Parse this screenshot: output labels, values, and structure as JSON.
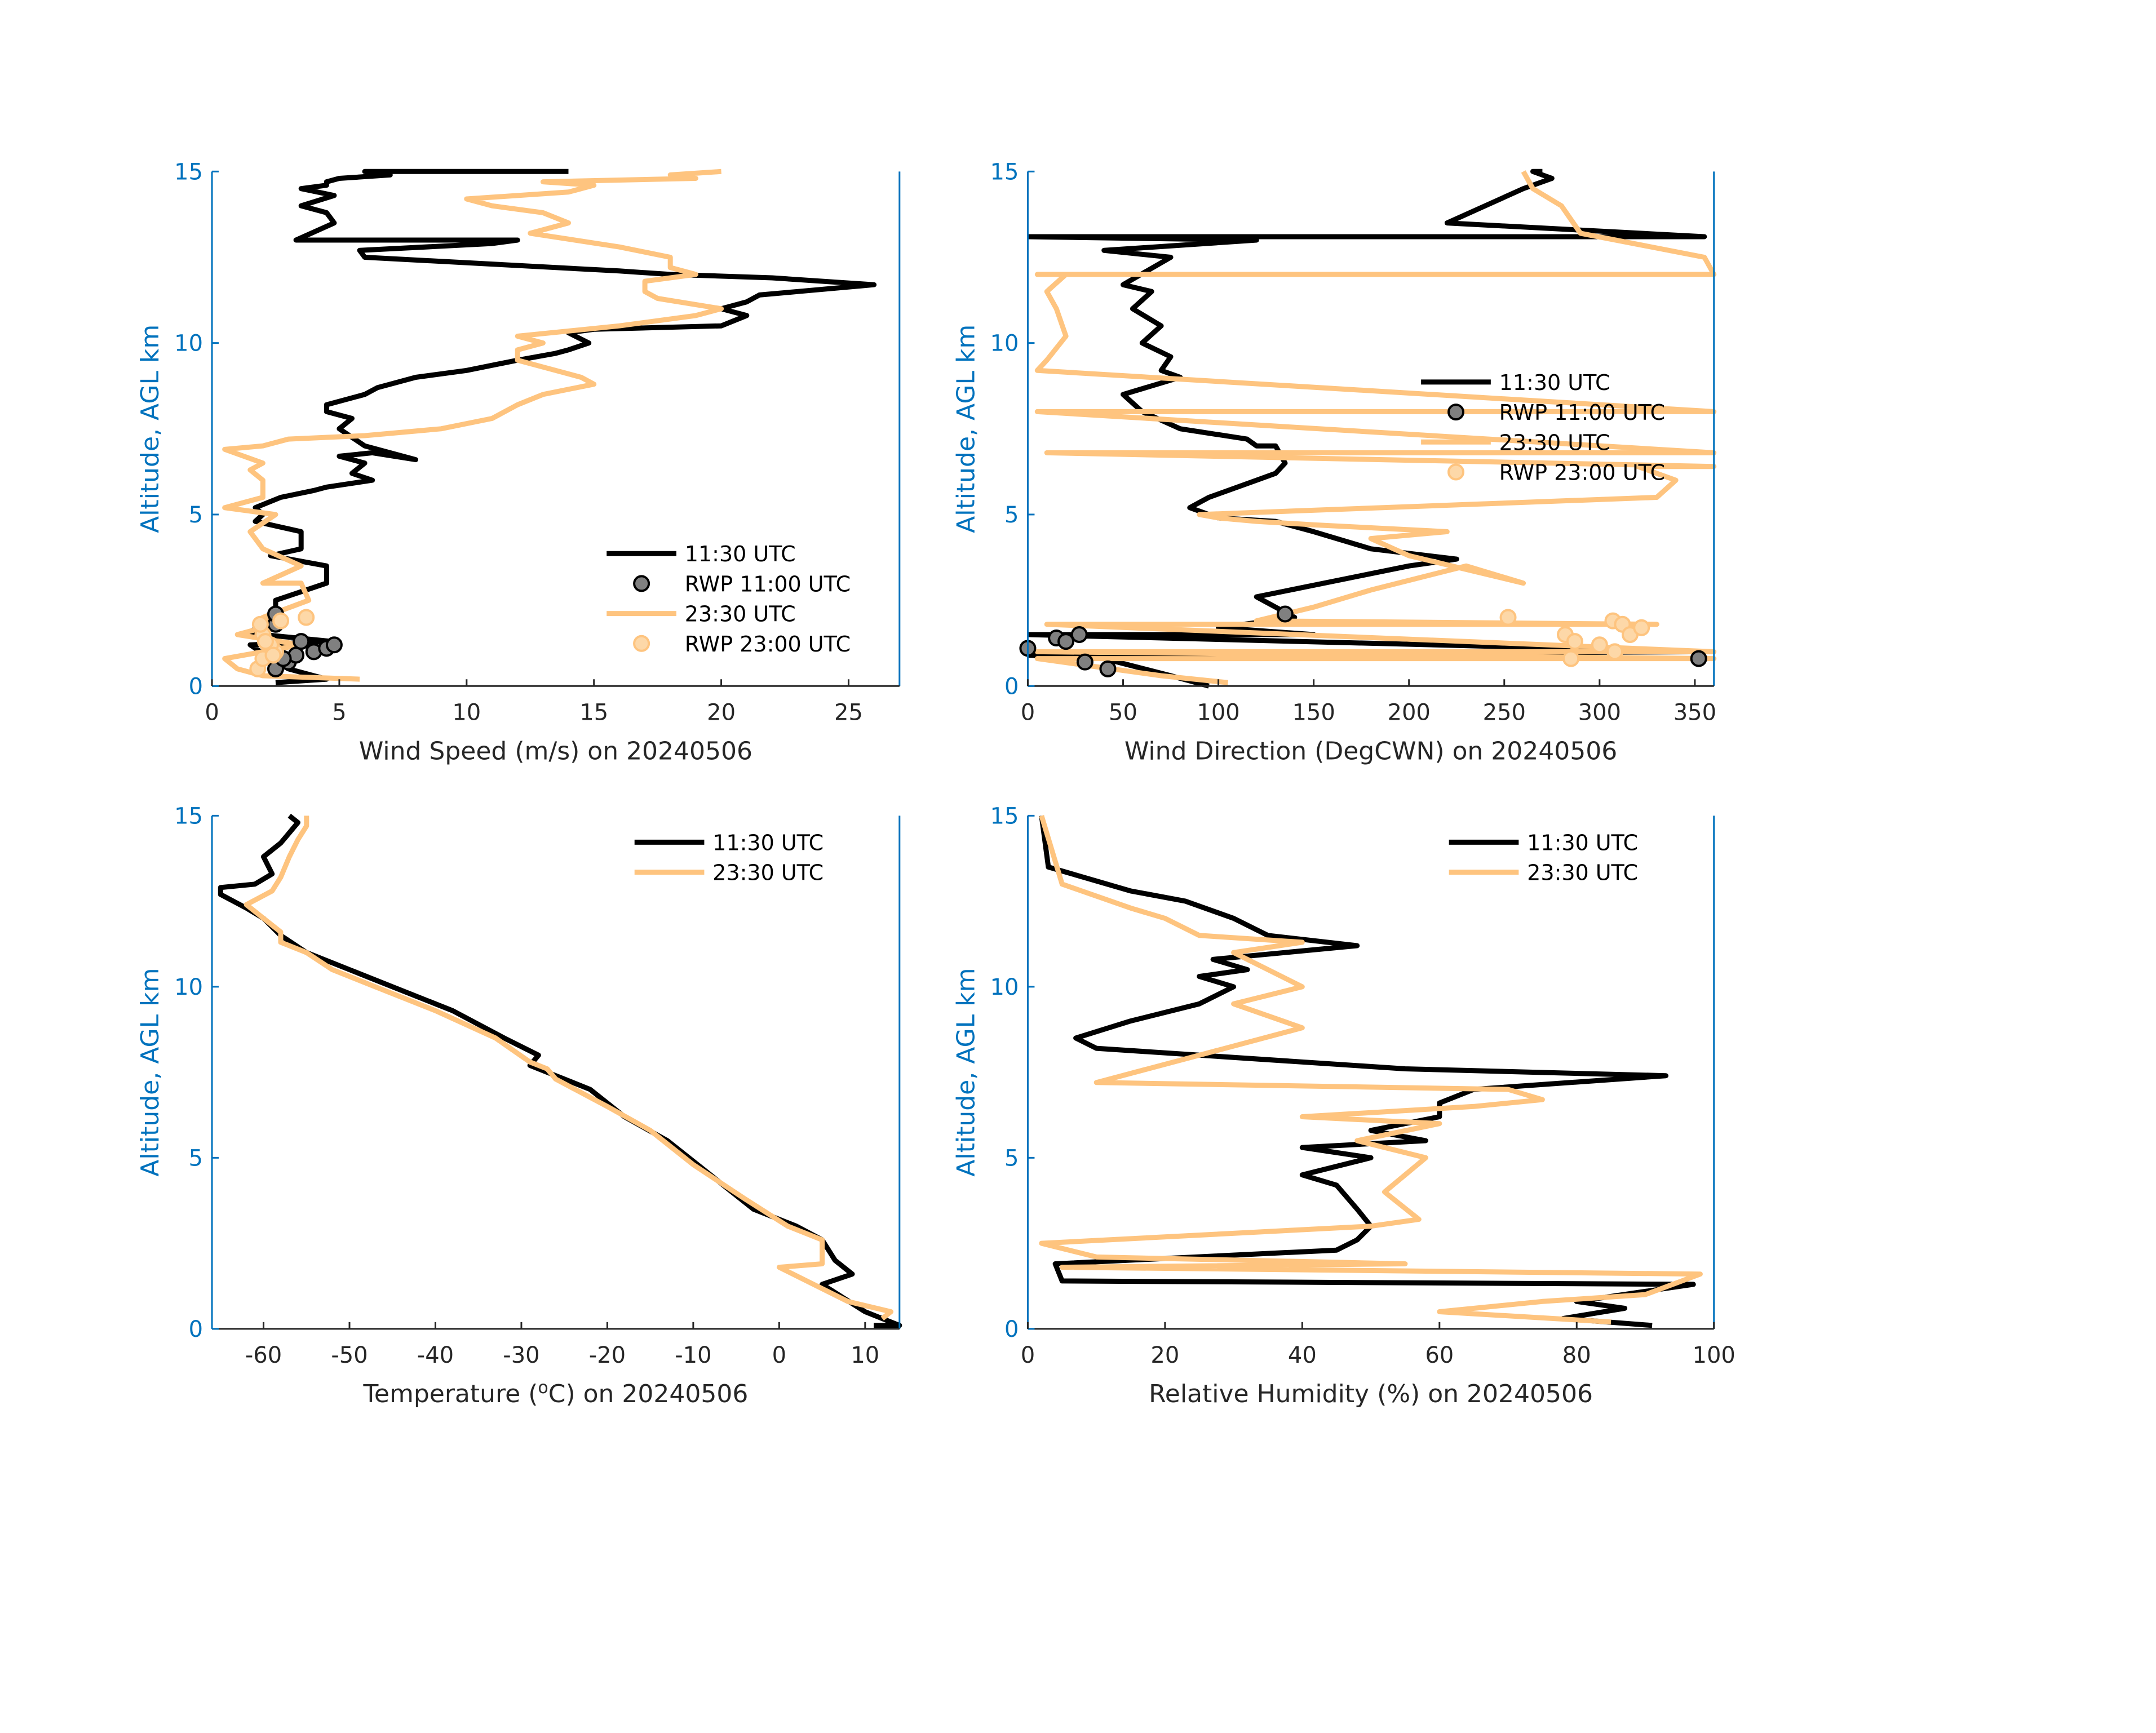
{
  "chart_data": [
    {
      "type": "line",
      "xlabel": "Wind Speed (m/s) on 20240506",
      "ylabel": "Altitude, AGL km",
      "xlim": [
        0,
        27
      ],
      "ylim": [
        0,
        15
      ],
      "xticks": [
        0,
        5,
        10,
        15,
        20,
        25
      ],
      "yticks": [
        0,
        5,
        10,
        15
      ],
      "legend": [
        "11:30 UTC",
        "RWP 11:00 UTC",
        "23:30 UTC",
        "RWP 23:00 UTC"
      ],
      "legend_position": "bottom-right",
      "series": [
        {
          "name": "11:30 UTC",
          "color": "#000000",
          "x": [
            2.5,
            4.5,
            3,
            2.3,
            1.5,
            4.7,
            2,
            1.3,
            2.5,
            2.5,
            4.5,
            4.5,
            2.3,
            3.5,
            3.5,
            1.7,
            2,
            1.7,
            2.7,
            4,
            4.5,
            6.3,
            5.5,
            6,
            5,
            6.3,
            8,
            6,
            5,
            5.5,
            4.5,
            4.5,
            6,
            6.5,
            8,
            10,
            12,
            13.5,
            14,
            14.8,
            14,
            15,
            20,
            21,
            20,
            21,
            21.5,
            23,
            26,
            22,
            18,
            16,
            11,
            6,
            5.8,
            11,
            12,
            3.3,
            4.8,
            4.5,
            3.5,
            4.8,
            3.5,
            4.5,
            4.5,
            5,
            7,
            6,
            14
          ],
          "y": [
            0.1,
            0.2,
            0.5,
            0.8,
            1.2,
            1.3,
            1.5,
            1.5,
            2,
            2.5,
            3,
            3.5,
            3.8,
            4,
            4.5,
            4.8,
            5,
            5.2,
            5.5,
            5.7,
            5.8,
            6,
            6.2,
            6.5,
            6.7,
            6.8,
            6.6,
            7,
            7.5,
            7.8,
            8,
            8.2,
            8.5,
            8.7,
            9,
            9.2,
            9.5,
            9.7,
            9.8,
            10,
            10.3,
            10.4,
            10.5,
            10.8,
            11,
            11.2,
            11.4,
            11.5,
            11.7,
            11.9,
            12,
            12.1,
            12.3,
            12.5,
            12.7,
            12.9,
            13,
            13,
            13.5,
            13.8,
            14,
            14.3,
            14.5,
            14.6,
            14.7,
            14.8,
            14.9,
            15,
            15
          ]
        },
        {
          "name": "23:30 UTC",
          "color": "#fec47f",
          "x": [
            5.8,
            2,
            1,
            0.5,
            2,
            3.5,
            1,
            2.5,
            2,
            3.8,
            3.5,
            2,
            3.5,
            2,
            1.5,
            2.5,
            0.5,
            2,
            2,
            1.5,
            2,
            0.5,
            2,
            3,
            6,
            9,
            11,
            12,
            13,
            15,
            14.5,
            13.5,
            12,
            12,
            13,
            12,
            16,
            19,
            20,
            17.5,
            17,
            17,
            19,
            18,
            18,
            16,
            12.5,
            14,
            13,
            11,
            10,
            14,
            15,
            13,
            19,
            18,
            20
          ],
          "y": [
            0.2,
            0.3,
            0.5,
            0.8,
            1,
            1.2,
            1.5,
            1.8,
            2,
            2.5,
            3,
            3,
            3.5,
            4,
            4.5,
            5,
            5.2,
            5.5,
            6,
            6.3,
            6.5,
            6.9,
            7,
            7.2,
            7.3,
            7.5,
            7.8,
            8.2,
            8.5,
            8.8,
            9,
            9.2,
            9.5,
            9.8,
            10,
            10.2,
            10.5,
            10.8,
            11,
            11.3,
            11.5,
            11.8,
            12,
            12.2,
            12.5,
            12.8,
            13.2,
            13.5,
            13.8,
            14,
            14.2,
            14.4,
            14.6,
            14.7,
            14.8,
            14.9,
            15
          ]
        }
      ],
      "scatter": [
        {
          "name": "RWP 11:00 UTC",
          "color": "#808080",
          "x": [
            2.5,
            3,
            3.3,
            4,
            4.5,
            4.8,
            2.8,
            2.5,
            3.5,
            2.5
          ],
          "y": [
            0.5,
            0.7,
            0.9,
            1,
            1.1,
            1.2,
            0.8,
            1.8,
            1.3,
            2.1
          ]
        },
        {
          "name": "RWP 23:00 UTC",
          "color": "#fdd8a8",
          "x": [
            1.8,
            2,
            2.5,
            2.3,
            3.7,
            2,
            1.9,
            2.7,
            2.1,
            2.4
          ],
          "y": [
            0.5,
            0.8,
            1,
            1.2,
            2,
            1.5,
            1.8,
            1.9,
            1.3,
            0.9
          ]
        }
      ]
    },
    {
      "type": "line",
      "xlabel": "Wind Direction (DegCWN) on 20240506",
      "ylabel": "Altitude, AGL km",
      "xlim": [
        0,
        360
      ],
      "ylim": [
        0,
        15
      ],
      "xticks": [
        0,
        50,
        100,
        150,
        200,
        250,
        300,
        350
      ],
      "yticks": [
        0,
        5,
        10,
        15
      ],
      "legend": [
        "11:30 UTC",
        "RWP 11:00 UTC",
        "23:30 UTC",
        "RWP 23:00 UTC"
      ],
      "legend_position": "center-right",
      "series": [
        {
          "name": "11:30 UTC",
          "color": "#000000",
          "x": [
            95,
            75,
            40,
            0,
            355,
            0,
            150,
            100,
            140,
            130,
            120,
            200,
            225,
            180,
            150,
            130,
            100,
            85,
            95,
            120,
            130,
            135,
            130,
            120,
            115,
            80,
            60,
            50,
            80,
            70,
            75,
            60,
            70,
            55,
            65,
            50,
            75,
            40,
            120,
            0,
            355,
            220,
            240,
            260,
            275,
            265,
            270
          ],
          "y": [
            0,
            0.3,
            0.8,
            0.9,
            1,
            1.5,
            1.5,
            1.7,
            2,
            2.3,
            2.6,
            3.5,
            3.7,
            4,
            4.5,
            4.8,
            4.9,
            5.2,
            5.5,
            6,
            6.2,
            6.5,
            7,
            7,
            7.2,
            7.5,
            8,
            8.5,
            9,
            9.2,
            9.6,
            10,
            10.5,
            11,
            11.5,
            11.7,
            12.5,
            12.7,
            13,
            13.1,
            13.1,
            13.5,
            14,
            14.5,
            14.8,
            15,
            15
          ]
        },
        {
          "name": "23:30 UTC",
          "color": "#fec47f",
          "x": [
            105,
            70,
            5,
            360,
            5,
            360,
            10,
            330,
            120,
            150,
            180,
            230,
            260,
            200,
            180,
            220,
            150,
            120,
            100,
            90,
            330,
            340,
            320,
            360,
            10,
            360,
            5,
            360,
            5,
            10,
            20,
            15,
            10,
            20,
            5,
            360,
            355,
            290,
            280,
            265,
            260
          ],
          "y": [
            0.1,
            0.3,
            0.8,
            0.8,
            1,
            1,
            1.8,
            1.8,
            1.9,
            2.3,
            2.8,
            3.5,
            3.0,
            3.8,
            4.3,
            4.5,
            4.7,
            4.8,
            4.9,
            5,
            5.5,
            6,
            6.4,
            6.4,
            6.8,
            6.8,
            8,
            8,
            9.2,
            9.5,
            10.2,
            11,
            11.5,
            12,
            12,
            12,
            12.5,
            13.2,
            14,
            14.5,
            15
          ]
        }
      ],
      "scatter": [
        {
          "name": "RWP 11:00 UTC",
          "color": "#808080",
          "x": [
            0,
            15,
            20,
            27,
            30,
            42,
            135,
            352
          ],
          "y": [
            1.1,
            1.4,
            1.3,
            1.5,
            0.7,
            0.5,
            2.1,
            0.8
          ]
        },
        {
          "name": "RWP 23:00 UTC",
          "color": "#fdd8a8",
          "x": [
            252,
            282,
            287,
            300,
            307,
            312,
            316,
            322,
            308,
            285
          ],
          "y": [
            2.0,
            1.5,
            1.3,
            1.2,
            1.9,
            1.8,
            1.5,
            1.7,
            1.0,
            0.8
          ]
        }
      ]
    },
    {
      "type": "line",
      "xlabel_pre": "Temperature (",
      "xlabel_sup": "o",
      "xlabel_post": "C) on 20240506",
      "ylabel": "Altitude, AGL km",
      "xlim": [
        -66,
        14
      ],
      "ylim": [
        0,
        15
      ],
      "xticks": [
        -60,
        -50,
        -40,
        -30,
        -20,
        -10,
        0,
        10
      ],
      "yticks": [
        0,
        5,
        10,
        15
      ],
      "legend": [
        "11:30 UTC",
        "23:30 UTC"
      ],
      "legend_position": "top-right",
      "series": [
        {
          "name": "11:30 UTC",
          "color": "#000000",
          "x": [
            11,
            14,
            10,
            5,
            8.5,
            6.5,
            5,
            2,
            -3,
            -8,
            -13,
            -18,
            -22,
            -25,
            -29,
            -28,
            -32,
            -38,
            -45,
            -50,
            -55,
            -58,
            -60,
            -62,
            -65,
            -65,
            -61,
            -59,
            -60,
            -58,
            -57,
            -56,
            -57
          ],
          "y": [
            0.1,
            0.1,
            0.5,
            1.3,
            1.6,
            2,
            2.6,
            3,
            3.5,
            4.5,
            5.5,
            6.2,
            7,
            7.3,
            7.7,
            8,
            8.5,
            9.3,
            10,
            10.5,
            11,
            11.5,
            12,
            12.3,
            12.7,
            12.9,
            13,
            13.3,
            13.8,
            14.2,
            14.5,
            14.8,
            15
          ]
        },
        {
          "name": "23:30 UTC",
          "color": "#fec47f",
          "x": [
            12,
            13,
            8,
            0,
            5,
            5,
            1,
            -4,
            -10,
            -15,
            -20,
            -26,
            -27,
            -29,
            -33,
            -40,
            -47,
            -52,
            -55,
            -58,
            -58,
            -60,
            -62,
            -59,
            -58,
            -57,
            -56,
            -55,
            -55
          ],
          "y": [
            0.3,
            0.5,
            0.8,
            1.8,
            1.9,
            2.6,
            3,
            3.8,
            4.8,
            5.8,
            6.5,
            7.3,
            7.6,
            7.8,
            8.5,
            9.3,
            10,
            10.5,
            11,
            11.3,
            11.6,
            12,
            12.4,
            12.8,
            13.2,
            13.8,
            14.3,
            14.7,
            15
          ]
        }
      ]
    },
    {
      "type": "line",
      "xlabel": "Relative Humidity (%) on 20240506",
      "ylabel": "Altitude, AGL km",
      "xlim": [
        0,
        100
      ],
      "ylim": [
        0,
        15
      ],
      "xticks": [
        0,
        20,
        40,
        60,
        80,
        100
      ],
      "yticks": [
        0,
        5,
        10,
        15
      ],
      "legend": [
        "11:30 UTC",
        "23:30 UTC"
      ],
      "legend_position": "top-right",
      "series": [
        {
          "name": "11:30 UTC",
          "color": "#000000",
          "x": [
            91,
            78,
            87,
            80,
            97,
            5,
            4,
            45,
            48,
            50,
            48,
            45,
            40,
            50,
            40,
            58,
            50,
            60,
            60,
            65,
            93,
            55,
            10,
            7,
            15,
            25,
            30,
            25,
            32,
            27,
            48,
            35,
            30,
            23,
            15,
            3,
            2
          ],
          "y": [
            0.1,
            0.3,
            0.6,
            0.8,
            1.3,
            1.4,
            1.9,
            2.3,
            2.6,
            3,
            3.5,
            4.2,
            4.5,
            5,
            5.3,
            5.5,
            5.8,
            6.2,
            6.6,
            7,
            7.4,
            7.6,
            8.2,
            8.5,
            9,
            9.5,
            10,
            10.3,
            10.5,
            10.8,
            11.2,
            11.5,
            12,
            12.5,
            12.8,
            13.5,
            15
          ]
        },
        {
          "name": "23:30 UTC",
          "color": "#fec47f",
          "x": [
            85,
            60,
            75,
            90,
            98,
            5,
            55,
            10,
            2,
            50,
            57,
            52,
            58,
            48,
            60,
            40,
            65,
            75,
            70,
            10,
            25,
            40,
            30,
            40,
            35,
            30,
            40,
            25,
            20,
            15,
            5,
            2
          ],
          "y": [
            0.2,
            0.5,
            0.8,
            1,
            1.6,
            1.8,
            1.9,
            2.1,
            2.5,
            3,
            3.2,
            4,
            5,
            5.5,
            6,
            6.2,
            6.5,
            6.7,
            7,
            7.2,
            8,
            8.8,
            9.5,
            10,
            10.5,
            11,
            11.3,
            11.5,
            12,
            12.3,
            13,
            15
          ]
        }
      ]
    }
  ],
  "colors": {
    "axis_blue": "#0072bd",
    "axis_dark": "#262626",
    "black_series": "#000000",
    "orange_series": "#fec47f"
  }
}
